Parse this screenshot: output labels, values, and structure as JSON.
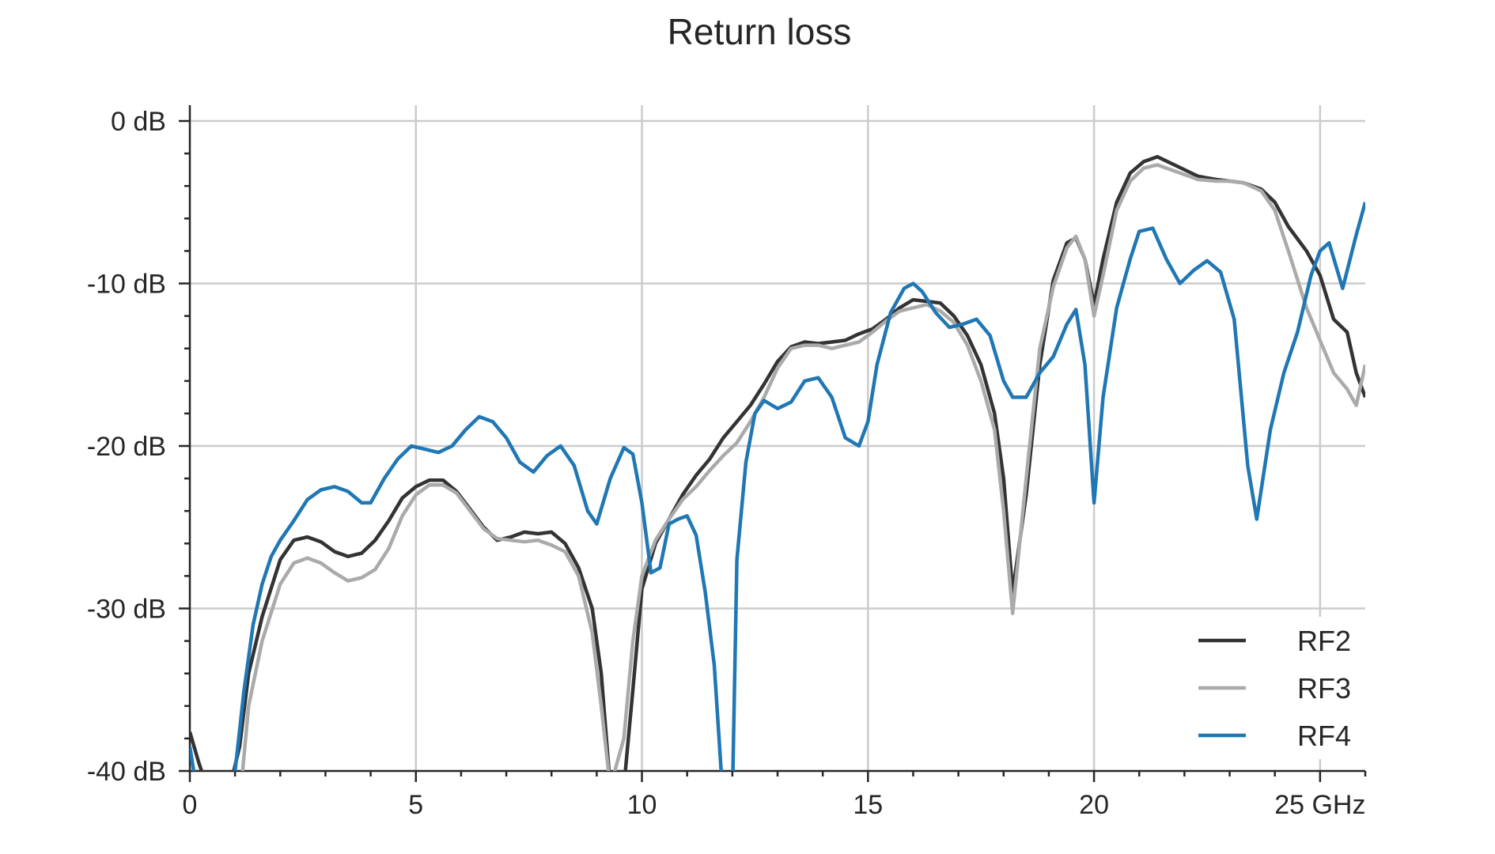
{
  "chart_data": {
    "type": "line",
    "title": "Return loss",
    "xlabel": "",
    "ylabel": "",
    "xlim": [
      0,
      26
    ],
    "ylim": [
      -40,
      0
    ],
    "x_ticks": [
      0,
      5,
      10,
      15,
      20,
      25
    ],
    "x_tick_labels": [
      "0",
      "5",
      "10",
      "15",
      "20",
      "25 GHz"
    ],
    "y_ticks": [
      0,
      -10,
      -20,
      -30,
      -40
    ],
    "y_tick_labels": [
      "0 dB",
      "-10 dB",
      "-20 dB",
      "-30 dB",
      "-40 dB"
    ],
    "grid": true,
    "legend_position": "bottom-right",
    "series": [
      {
        "name": "RF2",
        "color": "#333333",
        "x": [
          0,
          0.2,
          0.5,
          0.8,
          1.1,
          1.3,
          1.6,
          2.0,
          2.3,
          2.6,
          2.9,
          3.2,
          3.5,
          3.8,
          4.1,
          4.4,
          4.7,
          5.0,
          5.3,
          5.6,
          5.9,
          6.2,
          6.5,
          6.8,
          7.1,
          7.4,
          7.7,
          8.0,
          8.3,
          8.6,
          8.9,
          9.1,
          9.3,
          9.6,
          9.8,
          10.0,
          10.3,
          10.6,
          10.9,
          11.2,
          11.5,
          11.8,
          12.1,
          12.4,
          12.7,
          13.0,
          13.3,
          13.6,
          13.9,
          14.2,
          14.5,
          14.8,
          15.1,
          15.4,
          15.7,
          16.0,
          16.3,
          16.6,
          16.9,
          17.2,
          17.5,
          17.8,
          18.0,
          18.2,
          18.5,
          18.8,
          19.1,
          19.4,
          19.6,
          19.8,
          20.0,
          20.2,
          20.5,
          20.8,
          21.1,
          21.4,
          21.7,
          22.0,
          22.3,
          22.7,
          23.0,
          23.3,
          23.7,
          24.0,
          24.3,
          24.7,
          25.0,
          25.3,
          25.6,
          25.8,
          26.0
        ],
        "values": [
          -37.6,
          -39.5,
          -42,
          -42,
          -38.5,
          -34,
          -30.5,
          -27,
          -25.8,
          -25.6,
          -25.9,
          -26.5,
          -26.8,
          -26.6,
          -25.8,
          -24.6,
          -23.2,
          -22.5,
          -22.1,
          -22.1,
          -22.8,
          -23.9,
          -25,
          -25.8,
          -25.6,
          -25.3,
          -25.4,
          -25.3,
          -26,
          -27.5,
          -30,
          -34,
          -41,
          -41,
          -35,
          -28.8,
          -26,
          -24.5,
          -23,
          -21.8,
          -20.8,
          -19.5,
          -18.5,
          -17.5,
          -16.2,
          -14.8,
          -13.9,
          -13.6,
          -13.7,
          -13.6,
          -13.5,
          -13.1,
          -12.8,
          -12.2,
          -11.5,
          -11,
          -11.1,
          -11.2,
          -12,
          -13.2,
          -15,
          -18,
          -22,
          -29,
          -23,
          -15,
          -9.8,
          -7.5,
          -7.2,
          -8.5,
          -11.3,
          -8.5,
          -5,
          -3.2,
          -2.5,
          -2.2,
          -2.6,
          -3,
          -3.4,
          -3.6,
          -3.7,
          -3.8,
          -4.2,
          -5,
          -6.5,
          -8,
          -9.5,
          -12.2,
          -13,
          -15.5,
          -17
        ]
      },
      {
        "name": "RF3",
        "color": "#aaaaaa",
        "x": [
          0,
          0.2,
          0.5,
          0.8,
          1.1,
          1.3,
          1.6,
          2.0,
          2.3,
          2.6,
          2.9,
          3.2,
          3.5,
          3.8,
          4.1,
          4.4,
          4.7,
          5.0,
          5.3,
          5.6,
          5.9,
          6.2,
          6.5,
          6.8,
          7.1,
          7.4,
          7.7,
          8.0,
          8.3,
          8.6,
          8.9,
          9.1,
          9.3,
          9.6,
          9.8,
          10.0,
          10.3,
          10.6,
          10.9,
          11.2,
          11.5,
          11.8,
          12.1,
          12.4,
          12.7,
          13.0,
          13.3,
          13.6,
          13.9,
          14.2,
          14.5,
          14.8,
          15.1,
          15.4,
          15.7,
          16.0,
          16.3,
          16.6,
          16.9,
          17.2,
          17.5,
          17.8,
          18.0,
          18.2,
          18.5,
          18.8,
          19.1,
          19.4,
          19.6,
          19.8,
          20.0,
          20.2,
          20.5,
          20.8,
          21.1,
          21.4,
          21.7,
          22.0,
          22.3,
          22.7,
          23.0,
          23.3,
          23.7,
          24.0,
          24.3,
          24.7,
          25.0,
          25.3,
          25.6,
          25.8,
          26.0
        ],
        "values": [
          -42,
          -42,
          -42,
          -42,
          -42,
          -36,
          -32,
          -28.5,
          -27.2,
          -26.9,
          -27.2,
          -27.8,
          -28.3,
          -28.1,
          -27.6,
          -26.3,
          -24.3,
          -23,
          -22.4,
          -22.4,
          -22.9,
          -24,
          -25.1,
          -25.7,
          -25.8,
          -25.9,
          -25.8,
          -26.1,
          -26.5,
          -28,
          -31.5,
          -36,
          -41,
          -38,
          -32,
          -28,
          -25.8,
          -24.5,
          -23.3,
          -22.5,
          -21.5,
          -20.6,
          -19.8,
          -18.5,
          -17,
          -15.2,
          -14,
          -13.8,
          -13.8,
          -14,
          -13.8,
          -13.6,
          -13,
          -12.3,
          -11.7,
          -11.5,
          -11.3,
          -11.7,
          -12.4,
          -13.8,
          -16,
          -19,
          -24,
          -30.3,
          -22,
          -14,
          -10.2,
          -7.8,
          -7.1,
          -8.5,
          -12,
          -9.5,
          -5.5,
          -3.7,
          -2.9,
          -2.7,
          -3,
          -3.3,
          -3.6,
          -3.7,
          -3.7,
          -3.8,
          -4.3,
          -5.5,
          -8,
          -11.5,
          -13.5,
          -15.5,
          -16.5,
          -17.5,
          -15
        ]
      },
      {
        "name": "RF4",
        "color": "#1f77b4",
        "x": [
          0,
          0.2,
          0.5,
          0.8,
          1.0,
          1.2,
          1.4,
          1.6,
          1.8,
          2.0,
          2.3,
          2.6,
          2.9,
          3.2,
          3.5,
          3.8,
          4.0,
          4.3,
          4.6,
          4.9,
          5.2,
          5.5,
          5.8,
          6.1,
          6.4,
          6.7,
          7.0,
          7.3,
          7.6,
          7.9,
          8.2,
          8.5,
          8.8,
          9.0,
          9.3,
          9.6,
          9.8,
          10.0,
          10.2,
          10.4,
          10.6,
          10.8,
          11.0,
          11.2,
          11.4,
          11.6,
          11.8,
          11.9,
          12.0,
          12.1,
          12.3,
          12.5,
          12.7,
          13.0,
          13.3,
          13.6,
          13.9,
          14.2,
          14.5,
          14.8,
          15.0,
          15.2,
          15.5,
          15.8,
          16.0,
          16.2,
          16.5,
          16.8,
          17.1,
          17.4,
          17.7,
          18.0,
          18.2,
          18.5,
          18.8,
          19.1,
          19.4,
          19.6,
          19.8,
          20.0,
          20.2,
          20.5,
          20.8,
          21.0,
          21.3,
          21.6,
          21.9,
          22.2,
          22.5,
          22.8,
          23.1,
          23.4,
          23.6,
          23.9,
          24.2,
          24.5,
          24.8,
          25.0,
          25.2,
          25.5,
          25.8,
          26.0
        ],
        "values": [
          -38.5,
          -42,
          -42,
          -42,
          -40,
          -35,
          -31,
          -28.5,
          -26.8,
          -25.8,
          -24.6,
          -23.3,
          -22.7,
          -22.5,
          -22.8,
          -23.5,
          -23.5,
          -22,
          -20.8,
          -20,
          -20.2,
          -20.4,
          -20,
          -19,
          -18.2,
          -18.5,
          -19.5,
          -21,
          -21.6,
          -20.6,
          -20,
          -21.2,
          -24,
          -24.8,
          -22,
          -20.1,
          -20.5,
          -23.5,
          -27.8,
          -27.5,
          -24.8,
          -24.5,
          -24.3,
          -25.5,
          -29,
          -33.5,
          -42,
          -42,
          -42,
          -27,
          -21,
          -18,
          -17.2,
          -17.7,
          -17.3,
          -16,
          -15.8,
          -17,
          -19.5,
          -20,
          -18.5,
          -15,
          -11.8,
          -10.3,
          -10,
          -10.5,
          -11.8,
          -12.7,
          -12.5,
          -12.2,
          -13.2,
          -16,
          -17,
          -17,
          -15.5,
          -14.5,
          -12.5,
          -11.6,
          -15,
          -23.5,
          -17,
          -11.5,
          -8.5,
          -6.8,
          -6.6,
          -8.5,
          -10,
          -9.2,
          -8.6,
          -9.3,
          -12.2,
          -21.2,
          -24.5,
          -19,
          -15.5,
          -13,
          -9.5,
          -8,
          -7.5,
          -10.3,
          -7,
          -5
        ]
      }
    ]
  }
}
